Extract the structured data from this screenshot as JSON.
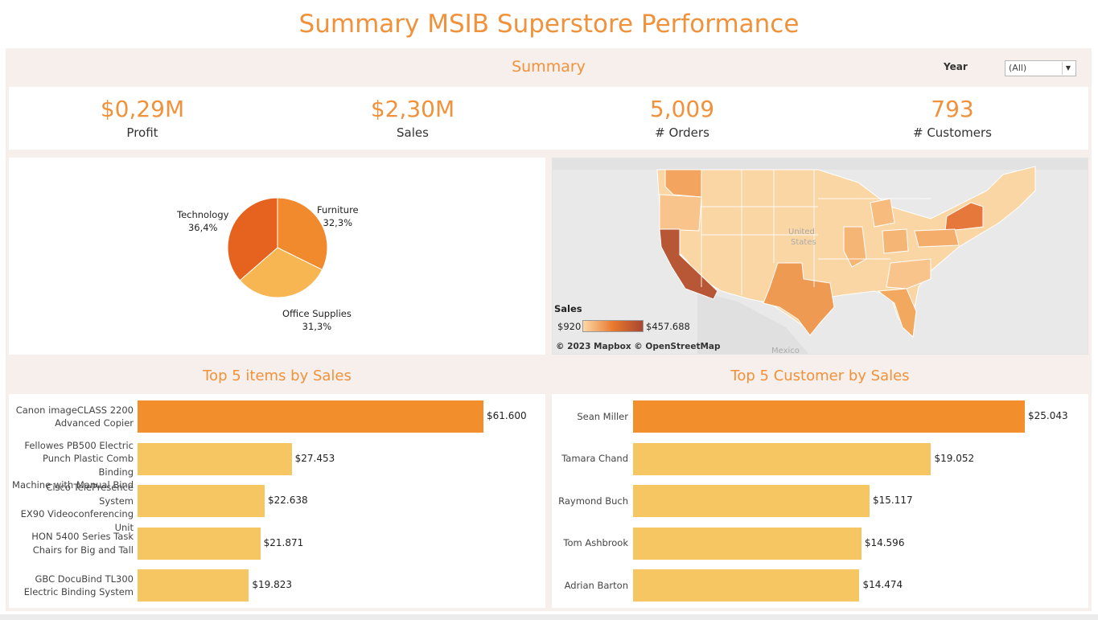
{
  "title": "Summary MSIB Superstore Performance",
  "summary": {
    "heading": "Summary",
    "filter_label": "Year",
    "filter_value": "(All)"
  },
  "kpis": [
    {
      "value": "$0,29M",
      "label": "Profit"
    },
    {
      "value": "$2,30M",
      "label": "Sales"
    },
    {
      "value": "5,009",
      "label": "# Orders"
    },
    {
      "value": "793",
      "label": "# Customers"
    }
  ],
  "colors": {
    "accent": "#f0923b",
    "panel": "#f6efeb",
    "bar_top": "#f28e2b",
    "bar_other": "#f5c662",
    "pie_technology": "#e5631f",
    "pie_furniture": "#f08a2c",
    "pie_office": "#f7b652"
  },
  "chart_data": [
    {
      "type": "pie",
      "categories": [
        "Furniture",
        "Office Supplies",
        "Technology"
      ],
      "values": [
        32.3,
        31.3,
        36.4
      ],
      "labels": [
        {
          "name": "Furniture",
          "pct": "32,3%"
        },
        {
          "name": "Office Supplies",
          "pct": "31,3%"
        },
        {
          "name": "Technology",
          "pct": "36,4%"
        }
      ]
    },
    {
      "type": "map",
      "region": "United States",
      "country_labels": [
        "United",
        "States",
        "Mexico"
      ],
      "legend": {
        "title": "Sales",
        "min": "$920",
        "max": "$457.688"
      },
      "attribution": "© 2023 Mapbox © OpenStreetMap",
      "highlight_states": [
        {
          "state": "California",
          "level": 1.0
        },
        {
          "state": "New York",
          "level": 0.69
        },
        {
          "state": "Texas",
          "level": 0.37
        },
        {
          "state": "Washington",
          "level": 0.3
        },
        {
          "state": "Pennsylvania",
          "level": 0.25
        },
        {
          "state": "Florida",
          "level": 0.2
        },
        {
          "state": "Illinois",
          "level": 0.17
        },
        {
          "state": "Ohio",
          "level": 0.17
        }
      ]
    },
    {
      "type": "bar",
      "title": "Top 5 items by Sales",
      "categories": [
        "Canon imageCLASS 2200 Advanced Copier",
        "Fellowes PB500 Electric Punch Plastic Comb Binding Machine with Manual Bind",
        "Cisco TelePresence System EX90 Videoconferencing Unit",
        "HON 5400 Series Task Chairs for Big and Tall",
        "GBC DocuBind TL300 Electric Binding System"
      ],
      "category_lines": [
        [
          "Canon imageCLASS 2200",
          "Advanced Copier"
        ],
        [
          "Fellowes PB500 Electric",
          "Punch Plastic Comb Binding",
          "Machine with Manual Bind"
        ],
        [
          "Cisco TelePresence System",
          "EX90 Videoconferencing",
          "Unit"
        ],
        [
          "HON 5400 Series Task",
          "Chairs for Big and Tall"
        ],
        [
          "GBC DocuBind TL300",
          "Electric Binding System"
        ]
      ],
      "values": [
        61600,
        27453,
        22638,
        21871,
        19823
      ],
      "value_labels": [
        "$61.600",
        "$27.453",
        "$22.638",
        "$21.871",
        "$19.823"
      ],
      "xlim": [
        0,
        61600
      ]
    },
    {
      "type": "bar",
      "title": "Top 5 Customer by Sales",
      "categories": [
        "Sean Miller",
        "Tamara Chand",
        "Raymond Buch",
        "Tom Ashbrook",
        "Adrian Barton"
      ],
      "category_lines": [
        [
          "Sean Miller"
        ],
        [
          "Tamara Chand"
        ],
        [
          "Raymond Buch"
        ],
        [
          "Tom Ashbrook"
        ],
        [
          "Adrian Barton"
        ]
      ],
      "values": [
        25043,
        19052,
        15117,
        14596,
        14474
      ],
      "value_labels": [
        "$25.043",
        "$19.052",
        "$15.117",
        "$14.596",
        "$14.474"
      ],
      "xlim": [
        0,
        25043
      ]
    }
  ]
}
